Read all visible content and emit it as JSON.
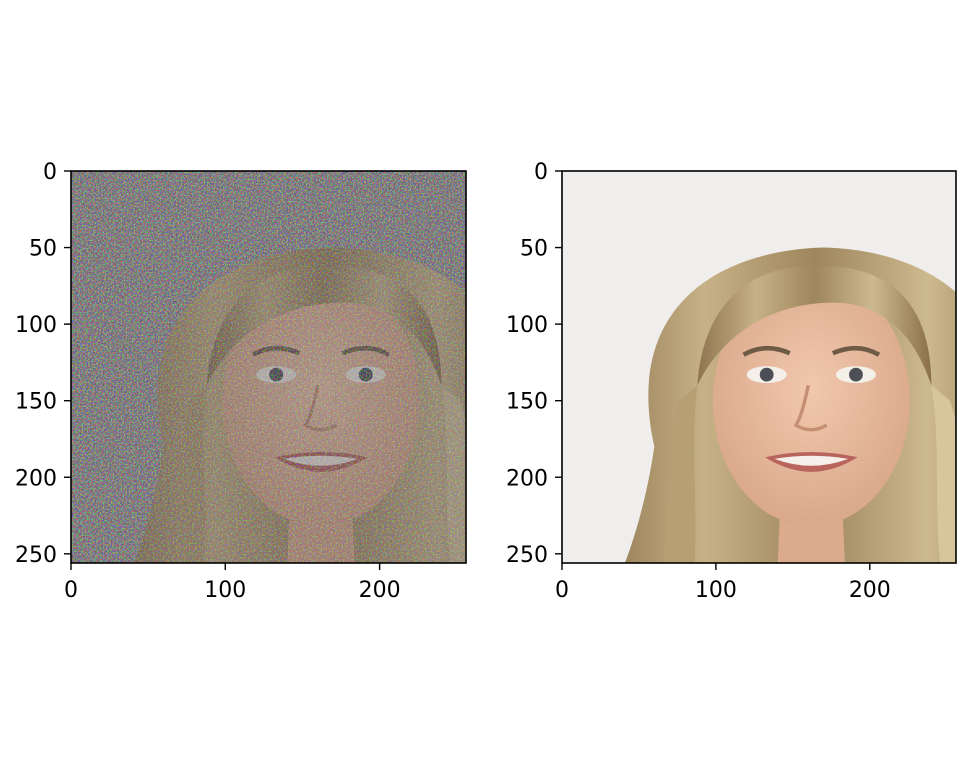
{
  "chart_data": [
    {
      "type": "image",
      "subject": "portrait",
      "variant": "noisy",
      "xlim": [
        0,
        256
      ],
      "ylim": [
        256,
        0
      ],
      "xticks": [
        0,
        100,
        200
      ],
      "xtick_labels": [
        "0",
        "100",
        "200"
      ],
      "yticks": [
        0,
        50,
        100,
        150,
        200,
        250
      ],
      "ytick_labels": [
        "0",
        "50",
        "100",
        "150",
        "200",
        "250"
      ]
    },
    {
      "type": "image",
      "subject": "portrait",
      "variant": "clean",
      "xlim": [
        0,
        256
      ],
      "ylim": [
        256,
        0
      ],
      "xticks": [
        0,
        100,
        200
      ],
      "xtick_labels": [
        "0",
        "100",
        "200"
      ],
      "yticks": [
        0,
        50,
        100,
        150,
        200,
        250
      ],
      "ytick_labels": [
        "0",
        "50",
        "100",
        "150",
        "200",
        "250"
      ]
    }
  ],
  "colors": {
    "background_left": "#c9c3c6",
    "background_right": "#efeeec",
    "hair": "#a38c63",
    "hair_highlight": "#d2c096",
    "skin": "#e6b99d",
    "shirt": "#24434a"
  }
}
